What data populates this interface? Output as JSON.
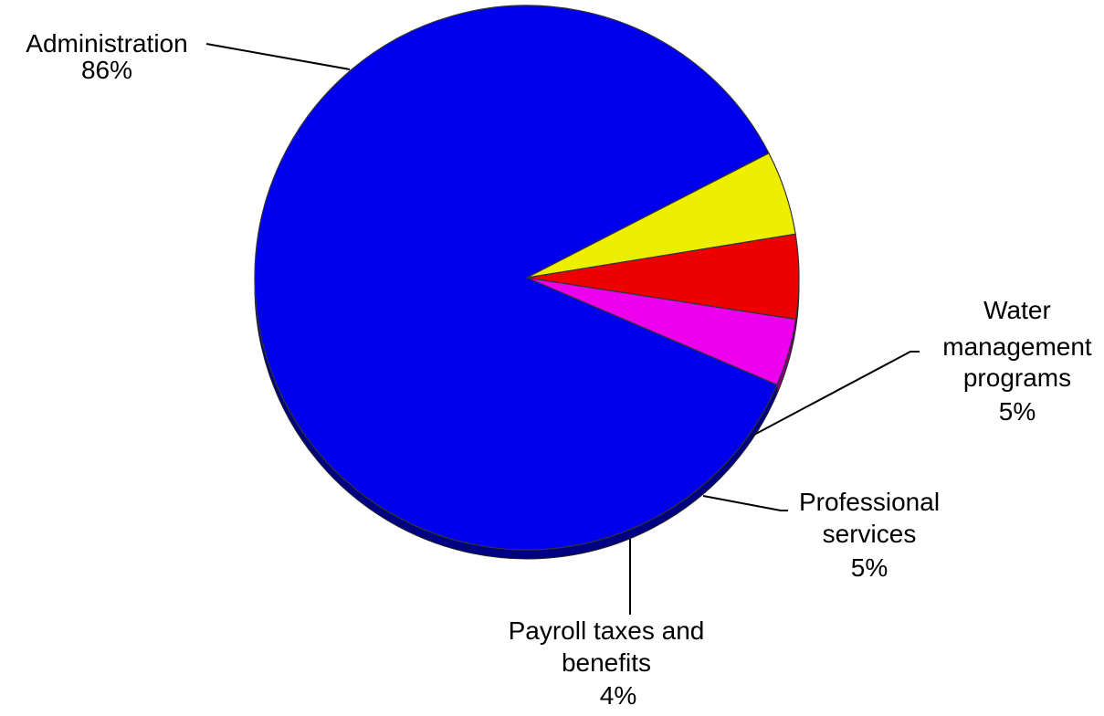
{
  "chart_data": {
    "type": "pie",
    "title": "",
    "slices": [
      {
        "name": "Administration",
        "label_lines": [
          "Administration"
        ],
        "pct_label": "86%",
        "value": 86,
        "color": "#0000EE"
      },
      {
        "name": "Water management programs",
        "label_lines": [
          "Water",
          "management",
          "programs"
        ],
        "pct_label": "5%",
        "value": 5,
        "color": "#EEEE00"
      },
      {
        "name": "Professional services",
        "label_lines": [
          "Professional",
          "services"
        ],
        "pct_label": "5%",
        "value": 5,
        "color": "#EE0000"
      },
      {
        "name": "Payroll taxes and benefits",
        "label_lines": [
          "Payroll taxes and",
          "benefits"
        ],
        "pct_label": "4%",
        "value": 4,
        "color": "#EE00EE"
      }
    ]
  }
}
